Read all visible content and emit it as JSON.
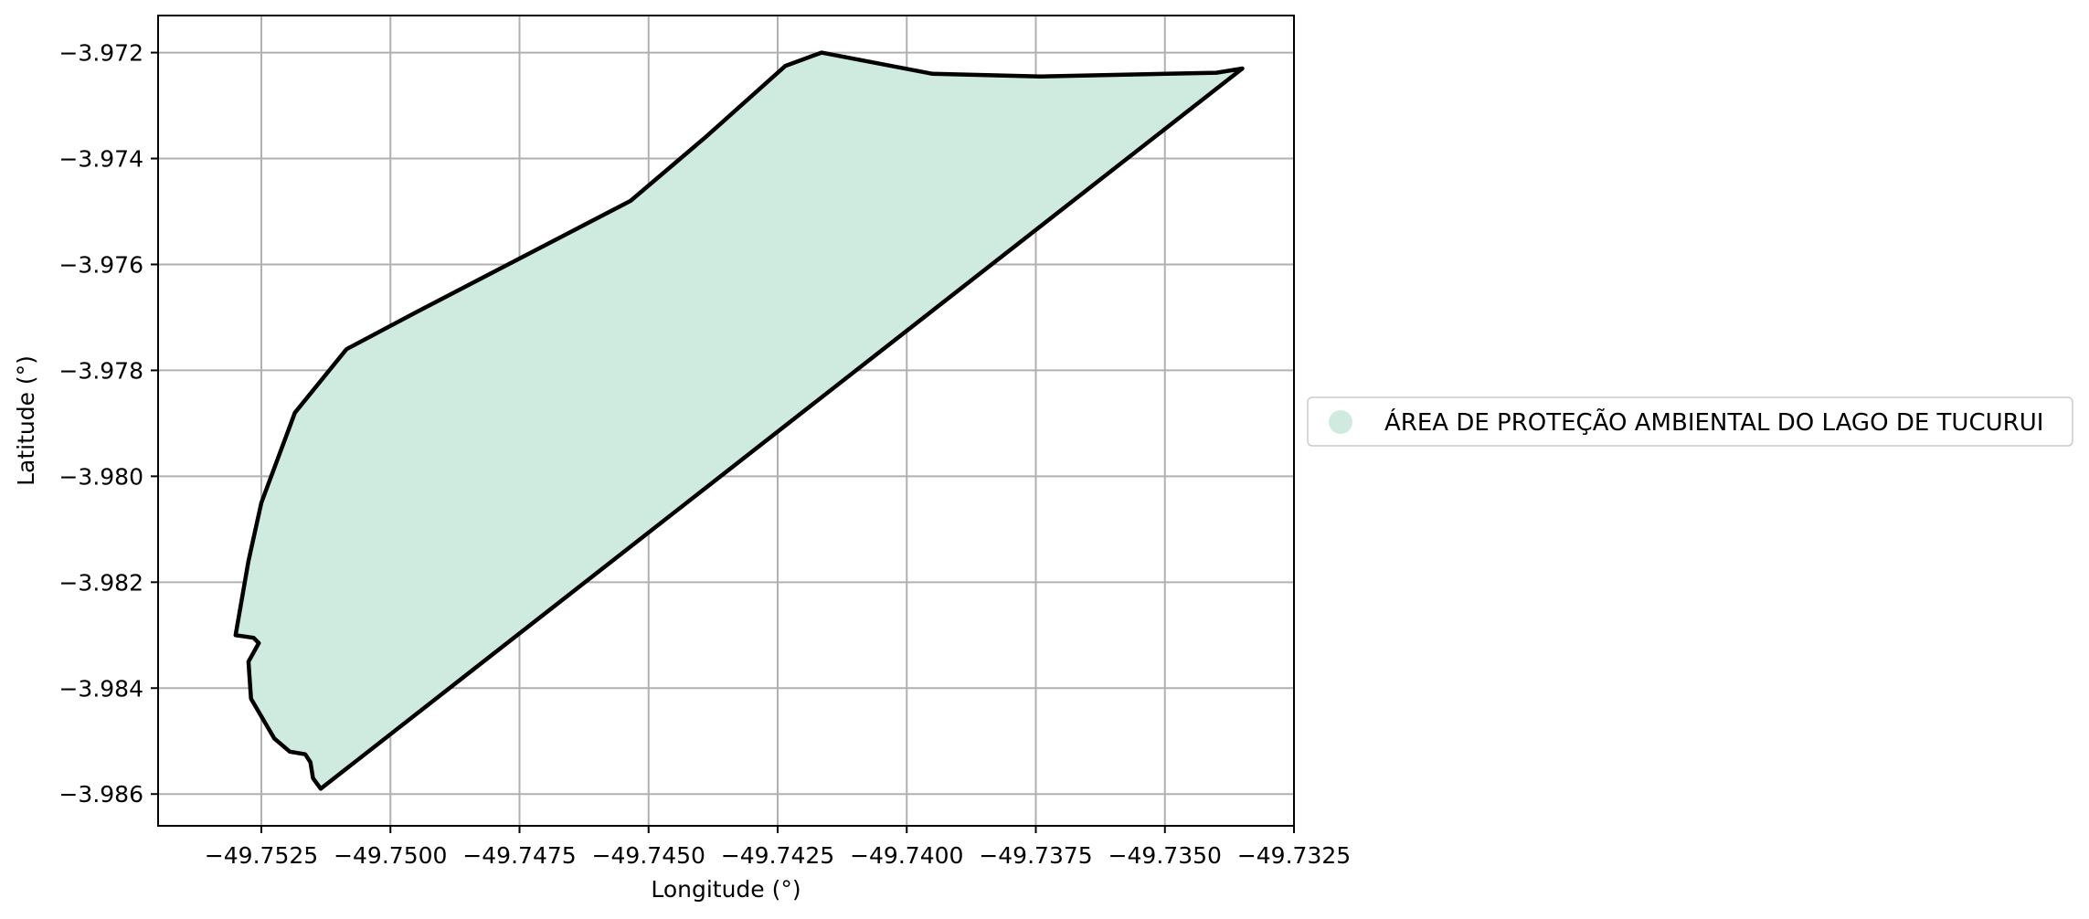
{
  "chart_data": {
    "type": "map",
    "xlabel": "Longitude (°)",
    "ylabel": "Latitude (°)",
    "xlim": [
      -49.7545,
      -49.7325
    ],
    "ylim": [
      -3.9866,
      -3.9713
    ],
    "xticks": [
      -49.7525,
      -49.75,
      -49.7475,
      -49.745,
      -49.7425,
      -49.74,
      -49.7375,
      -49.735,
      -49.7325
    ],
    "xtick_labels": [
      "−49.7525",
      "−49.7500",
      "−49.7475",
      "−49.7450",
      "−49.7425",
      "−49.7400",
      "−49.7375",
      "−49.7350",
      "−49.7325"
    ],
    "yticks": [
      -3.972,
      -3.974,
      -3.976,
      -3.978,
      -3.98,
      -3.982,
      -3.984,
      -3.986
    ],
    "ytick_labels": [
      "−3.972",
      "−3.974",
      "−3.976",
      "−3.978",
      "−3.980",
      "−3.982",
      "−3.984",
      "−3.986"
    ],
    "grid": true,
    "legend": {
      "placement": "center-right outside",
      "entries": [
        "ÁREA DE PROTEÇÃO AMBIENTAL DO LAGO DE TUCURUI"
      ]
    },
    "fill_color": "#cfebdf",
    "edge_color": "#000000",
    "polygon": [
      [
        -49.7335,
        -3.9723
      ],
      [
        -49.734,
        -3.97238
      ],
      [
        -49.7374,
        -3.97245
      ],
      [
        -49.7395,
        -3.9724
      ],
      [
        -49.74165,
        -3.972
      ],
      [
        -49.74235,
        -3.97225
      ],
      [
        -49.7439,
        -3.9736
      ],
      [
        -49.74535,
        -3.9748
      ],
      [
        -49.7495,
        -3.9769
      ],
      [
        -49.75085,
        -3.9776
      ],
      [
        -49.75185,
        -3.9788
      ],
      [
        -49.7525,
        -3.9805
      ],
      [
        -49.75275,
        -3.9816
      ],
      [
        -49.753,
        -3.983
      ],
      [
        -49.75265,
        -3.98305
      ],
      [
        -49.75255,
        -3.98315
      ],
      [
        -49.75275,
        -3.9835
      ],
      [
        -49.7527,
        -3.9842
      ],
      [
        -49.75225,
        -3.98495
      ],
      [
        -49.75195,
        -3.9852
      ],
      [
        -49.75165,
        -3.98525
      ],
      [
        -49.75155,
        -3.9854
      ],
      [
        -49.7515,
        -3.9857
      ],
      [
        -49.75135,
        -3.9859
      ]
    ]
  }
}
